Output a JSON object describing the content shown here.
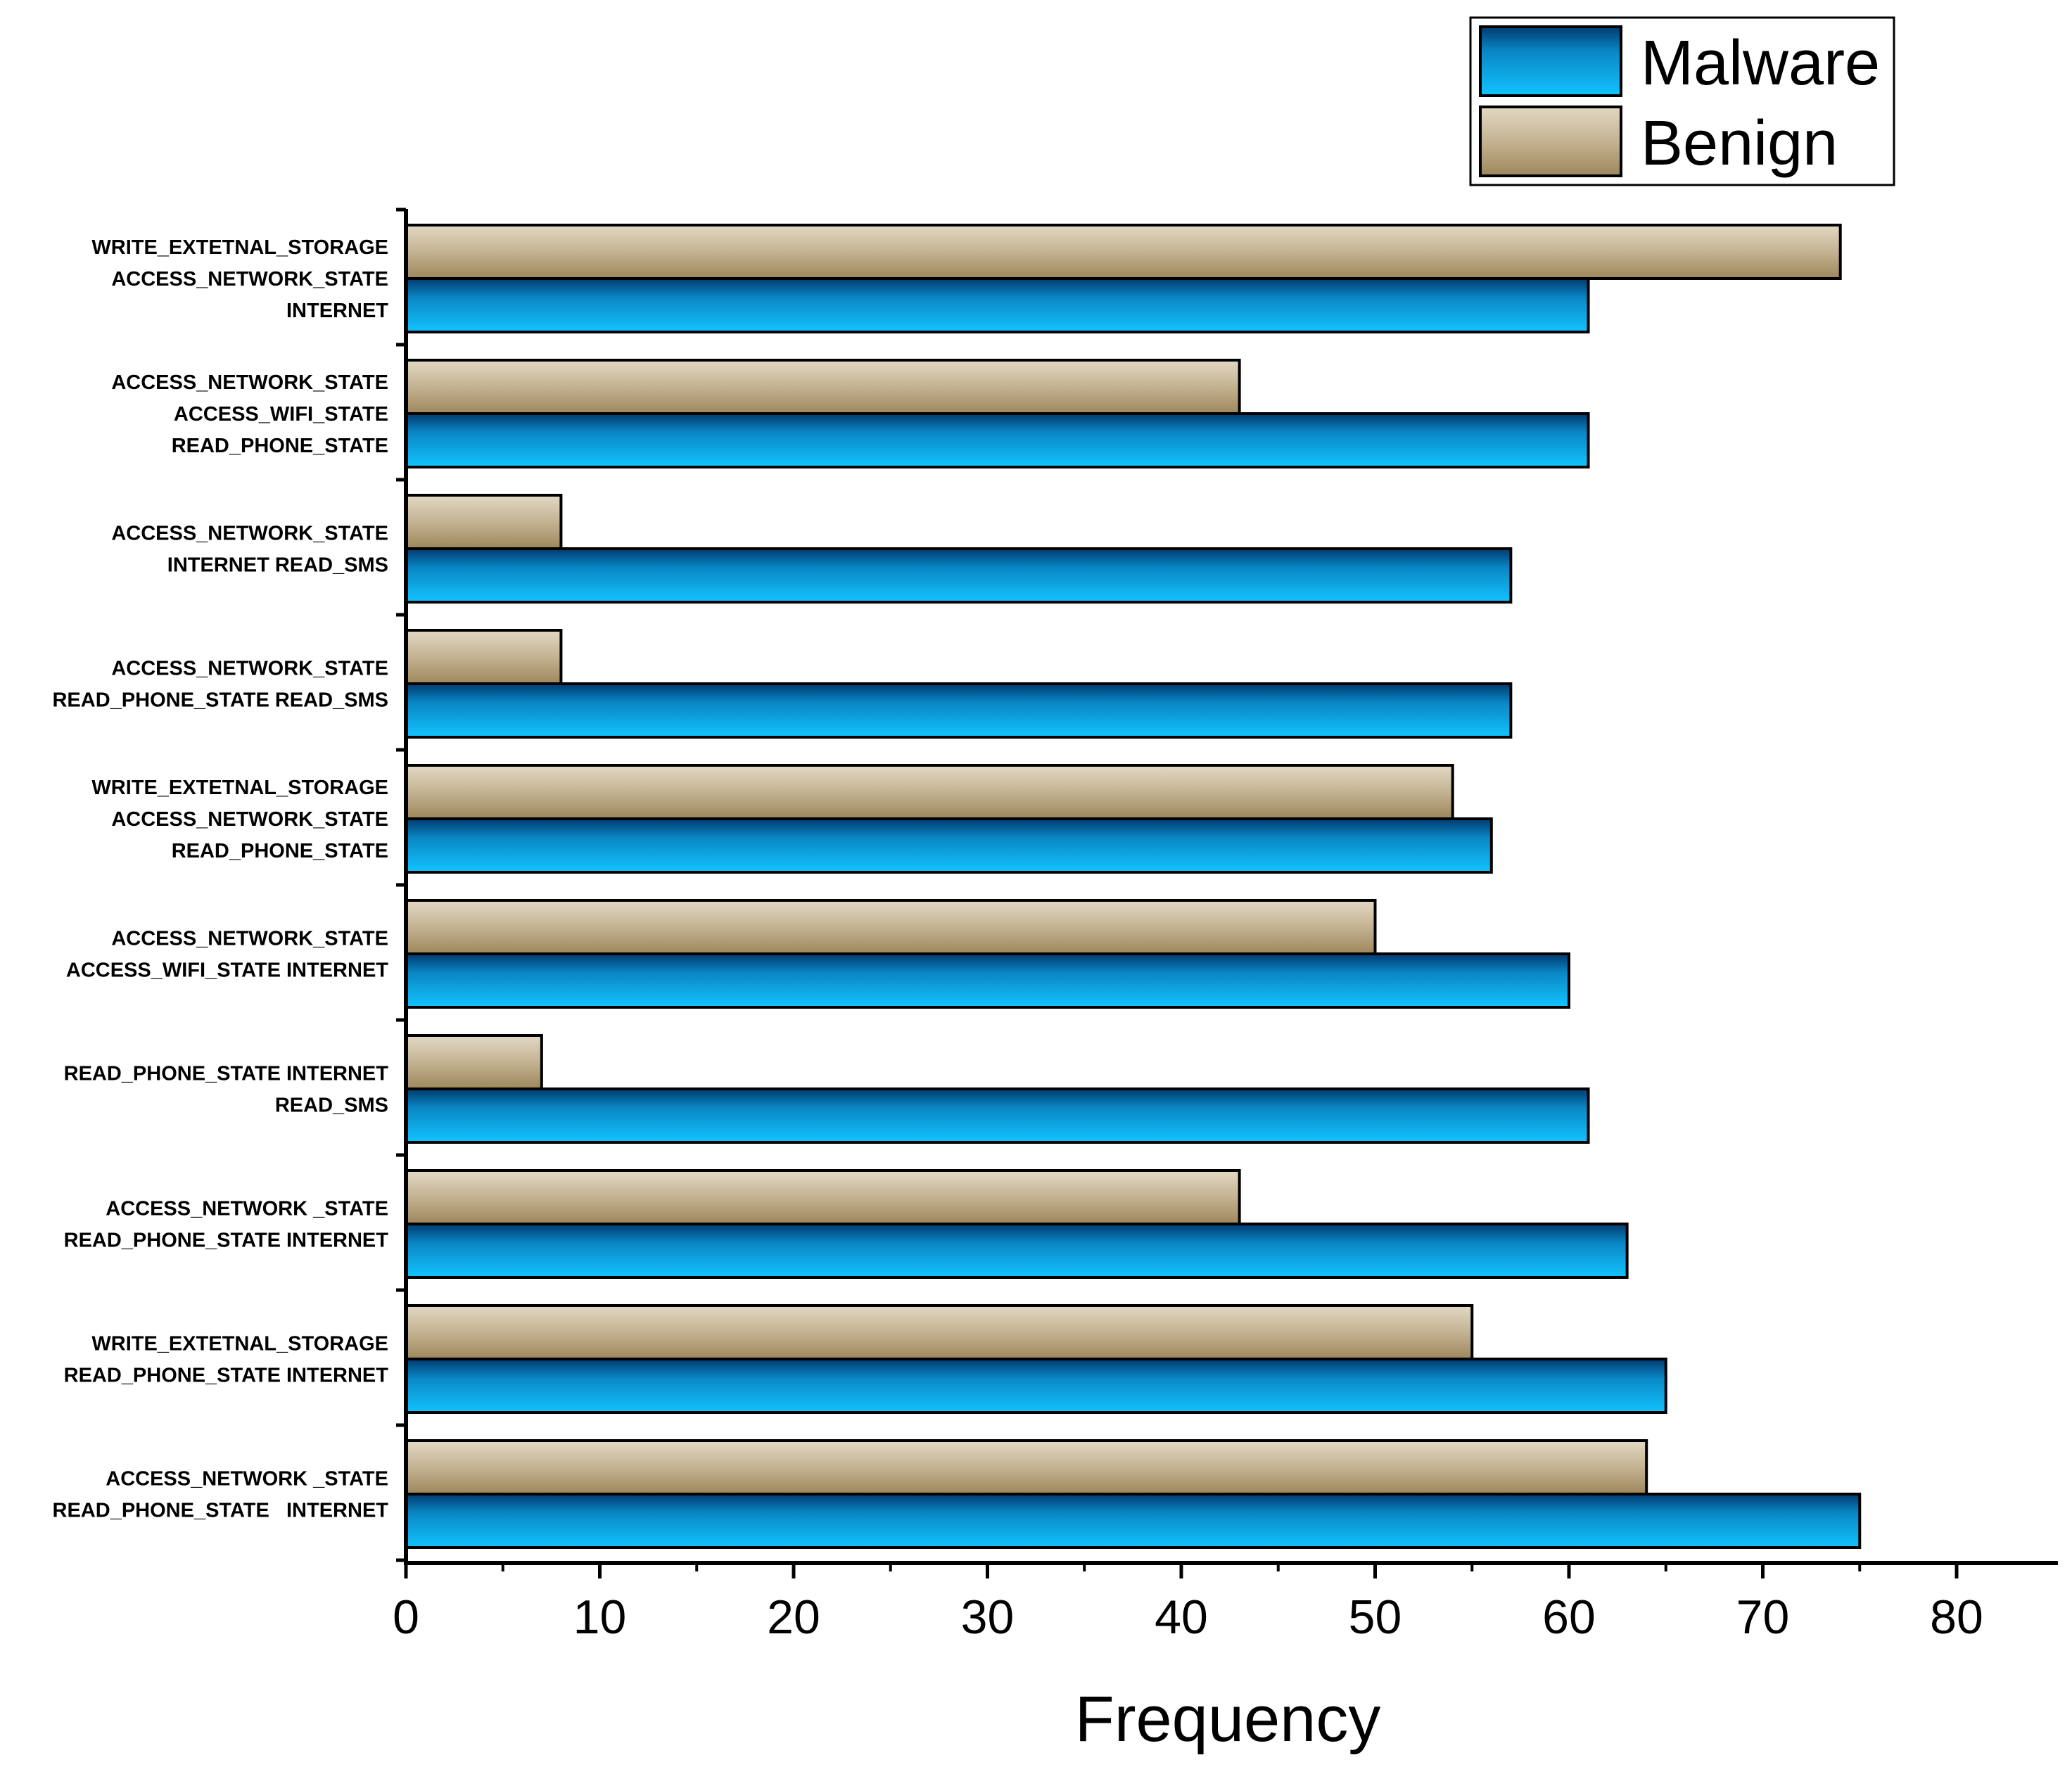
{
  "chart_data": {
    "type": "bar",
    "orientation": "horizontal",
    "title": "",
    "xlabel": "Frequency",
    "ylabel": "",
    "xlim": [
      0,
      85
    ],
    "xticks": [
      0,
      10,
      20,
      30,
      40,
      50,
      60,
      70,
      80
    ],
    "legend_position": "top-right",
    "categories": [
      [
        "WRITE_EXTETNAL_STORAGE",
        "ACCESS_NETWORK_STATE",
        "INTERNET"
      ],
      [
        "ACCESS_NETWORK_STATE",
        "ACCESS_WIFI_STATE",
        "READ_PHONE_STATE"
      ],
      [
        "ACCESS_NETWORK_STATE",
        "INTERNET READ_SMS"
      ],
      [
        "ACCESS_NETWORK_STATE",
        "READ_PHONE_STATE READ_SMS"
      ],
      [
        "WRITE_EXTETNAL_STORAGE",
        "ACCESS_NETWORK_STATE",
        "READ_PHONE_STATE"
      ],
      [
        "ACCESS_NETWORK_STATE",
        "ACCESS_WIFI_STATE INTERNET"
      ],
      [
        "READ_PHONE_STATE INTERNET",
        "READ_SMS"
      ],
      [
        "ACCESS_NETWORK _STATE",
        "READ_PHONE_STATE INTERNET"
      ],
      [
        "WRITE_EXTETNAL_STORAGE",
        "READ_PHONE_STATE INTERNET"
      ],
      [
        "ACCESS_NETWORK _STATE",
        "READ_PHONE_STATE   INTERNET"
      ]
    ],
    "series": [
      {
        "name": "Malware",
        "color": "#00b4f0",
        "values": [
          61,
          61,
          57,
          57,
          56,
          60,
          61,
          63,
          65,
          75
        ]
      },
      {
        "name": "Benign",
        "color": "#b8a582",
        "values": [
          74,
          43,
          8,
          8,
          54,
          50,
          7,
          43,
          55,
          64
        ]
      }
    ]
  }
}
